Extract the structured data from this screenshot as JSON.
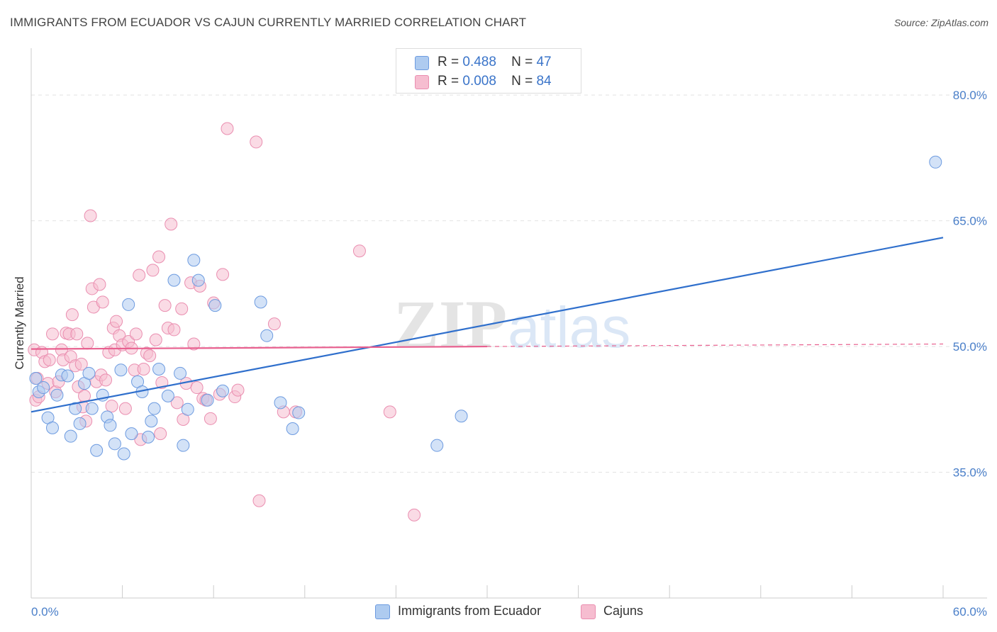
{
  "title": "IMMIGRANTS FROM ECUADOR VS CAJUN CURRENTLY MARRIED CORRELATION CHART",
  "source": "Source: ZipAtlas.com",
  "colors": {
    "blue_fill": "#aecbf0",
    "blue_stroke": "#6d9be0",
    "blue_line": "#2f6fcc",
    "pink_fill": "#f6bdd0",
    "pink_stroke": "#ea8eb0",
    "pink_line": "#e8608f",
    "tick_text": "#4a7fc9",
    "grid": "#e2e2e2"
  },
  "legend_top": {
    "rows": [
      {
        "r_label": "R =",
        "r_value": "0.488",
        "n_label": "N =",
        "n_value": "47",
        "color": "#aecbf0"
      },
      {
        "r_label": "R =",
        "r_value": "0.008",
        "n_label": "N =",
        "n_value": "84",
        "color": "#f6bdd0"
      }
    ]
  },
  "legend_bottom": [
    {
      "label": "Immigrants from Ecuador",
      "color": "#aecbf0"
    },
    {
      "label": "Cajuns",
      "color": "#f6bdd0"
    }
  ],
  "watermark": {
    "left": "ZIP",
    "right": "atlas"
  },
  "chart_data": {
    "type": "scatter",
    "title": "IMMIGRANTS FROM ECUADOR VS CAJUN CURRENTLY MARRIED CORRELATION CHART",
    "xlabel": "",
    "ylabel": "Currently Married",
    "xlim": [
      0,
      60
    ],
    "ylim": [
      20,
      85
    ],
    "x_tick_labels": [
      "0.0%",
      "60.0%"
    ],
    "y_ticks": [
      35,
      50,
      65,
      80
    ],
    "y_tick_labels": [
      "35.0%",
      "50.0%",
      "65.0%",
      "80.0%"
    ],
    "grid": true,
    "series": [
      {
        "name": "Immigrants from Ecuador",
        "r": 0.488,
        "n": 47,
        "trend": {
          "x": [
            0,
            60
          ],
          "y": [
            42.2,
            63.0
          ]
        },
        "points": [
          [
            0.3,
            46.2
          ],
          [
            0.5,
            44.6
          ],
          [
            0.8,
            45.1
          ],
          [
            1.1,
            41.5
          ],
          [
            1.4,
            40.3
          ],
          [
            1.7,
            44.2
          ],
          [
            2.0,
            46.6
          ],
          [
            2.4,
            46.5
          ],
          [
            2.6,
            39.3
          ],
          [
            2.9,
            42.6
          ],
          [
            3.2,
            40.8
          ],
          [
            3.5,
            45.6
          ],
          [
            3.8,
            46.8
          ],
          [
            4.0,
            42.6
          ],
          [
            4.3,
            37.6
          ],
          [
            4.7,
            44.2
          ],
          [
            5.0,
            41.6
          ],
          [
            5.2,
            40.6
          ],
          [
            5.5,
            38.4
          ],
          [
            5.9,
            47.2
          ],
          [
            6.1,
            37.2
          ],
          [
            6.4,
            55.0
          ],
          [
            6.6,
            39.6
          ],
          [
            7.0,
            45.8
          ],
          [
            7.3,
            44.6
          ],
          [
            7.7,
            39.2
          ],
          [
            7.9,
            41.1
          ],
          [
            8.1,
            42.6
          ],
          [
            8.4,
            47.3
          ],
          [
            9.0,
            44.1
          ],
          [
            9.4,
            57.9
          ],
          [
            9.8,
            46.8
          ],
          [
            10.0,
            38.2
          ],
          [
            10.3,
            42.5
          ],
          [
            10.7,
            60.3
          ],
          [
            11.0,
            57.9
          ],
          [
            11.6,
            43.6
          ],
          [
            12.1,
            54.9
          ],
          [
            12.6,
            44.7
          ],
          [
            15.1,
            55.3
          ],
          [
            15.5,
            51.3
          ],
          [
            16.4,
            43.3
          ],
          [
            17.2,
            40.2
          ],
          [
            17.6,
            42.1
          ],
          [
            26.7,
            38.2
          ],
          [
            28.3,
            41.7
          ],
          [
            59.5,
            72.0
          ]
        ]
      },
      {
        "name": "Cajuns",
        "r": 0.008,
        "n": 84,
        "trend": {
          "x": [
            0,
            30
          ],
          "y": [
            49.7,
            50.0
          ]
        },
        "trend_dashed": {
          "x": [
            30,
            60
          ],
          "y": [
            50.0,
            50.3
          ]
        },
        "points": [
          [
            0.2,
            49.6
          ],
          [
            0.3,
            43.6
          ],
          [
            0.4,
            46.2
          ],
          [
            0.5,
            44.0
          ],
          [
            0.7,
            49.3
          ],
          [
            0.9,
            48.2
          ],
          [
            1.1,
            45.6
          ],
          [
            1.2,
            48.4
          ],
          [
            1.4,
            51.5
          ],
          [
            1.6,
            44.6
          ],
          [
            1.8,
            45.8
          ],
          [
            2.0,
            49.6
          ],
          [
            2.1,
            48.4
          ],
          [
            2.3,
            51.6
          ],
          [
            2.5,
            51.5
          ],
          [
            2.6,
            48.8
          ],
          [
            2.7,
            53.8
          ],
          [
            2.9,
            47.7
          ],
          [
            3.0,
            51.5
          ],
          [
            3.1,
            45.2
          ],
          [
            3.3,
            47.9
          ],
          [
            3.4,
            42.8
          ],
          [
            3.5,
            44.1
          ],
          [
            3.6,
            41.1
          ],
          [
            3.7,
            50.4
          ],
          [
            3.9,
            65.6
          ],
          [
            4.0,
            56.9
          ],
          [
            4.1,
            54.7
          ],
          [
            4.3,
            45.8
          ],
          [
            4.5,
            57.4
          ],
          [
            4.6,
            46.6
          ],
          [
            4.7,
            55.3
          ],
          [
            4.9,
            46.0
          ],
          [
            5.1,
            49.3
          ],
          [
            5.3,
            42.9
          ],
          [
            5.4,
            52.2
          ],
          [
            5.5,
            49.6
          ],
          [
            5.6,
            53.0
          ],
          [
            5.8,
            51.3
          ],
          [
            6.0,
            50.2
          ],
          [
            6.2,
            42.6
          ],
          [
            6.4,
            50.6
          ],
          [
            6.6,
            49.8
          ],
          [
            6.8,
            47.2
          ],
          [
            7.1,
            58.5
          ],
          [
            7.2,
            38.9
          ],
          [
            7.4,
            47.3
          ],
          [
            7.6,
            49.2
          ],
          [
            7.8,
            48.9
          ],
          [
            8.0,
            59.1
          ],
          [
            8.2,
            50.8
          ],
          [
            8.4,
            60.7
          ],
          [
            8.5,
            39.6
          ],
          [
            8.6,
            45.7
          ],
          [
            8.8,
            54.9
          ],
          [
            9.0,
            52.2
          ],
          [
            9.2,
            64.6
          ],
          [
            9.4,
            52.0
          ],
          [
            9.6,
            43.3
          ],
          [
            9.9,
            54.5
          ],
          [
            10.0,
            41.3
          ],
          [
            10.2,
            45.6
          ],
          [
            10.5,
            57.6
          ],
          [
            10.7,
            50.3
          ],
          [
            10.9,
            45.1
          ],
          [
            11.1,
            57.2
          ],
          [
            11.3,
            43.8
          ],
          [
            11.8,
            41.4
          ],
          [
            12.0,
            55.2
          ],
          [
            12.4,
            44.3
          ],
          [
            12.6,
            58.6
          ],
          [
            12.9,
            76.0
          ],
          [
            13.4,
            44.0
          ],
          [
            14.8,
            74.4
          ],
          [
            15.0,
            31.6
          ],
          [
            16.0,
            52.7
          ],
          [
            16.6,
            42.2
          ],
          [
            17.4,
            42.2
          ],
          [
            21.6,
            61.4
          ],
          [
            23.6,
            42.2
          ],
          [
            25.2,
            29.9
          ],
          [
            13.6,
            44.8
          ],
          [
            11.5,
            43.6
          ],
          [
            6.9,
            51.5
          ]
        ]
      }
    ]
  }
}
